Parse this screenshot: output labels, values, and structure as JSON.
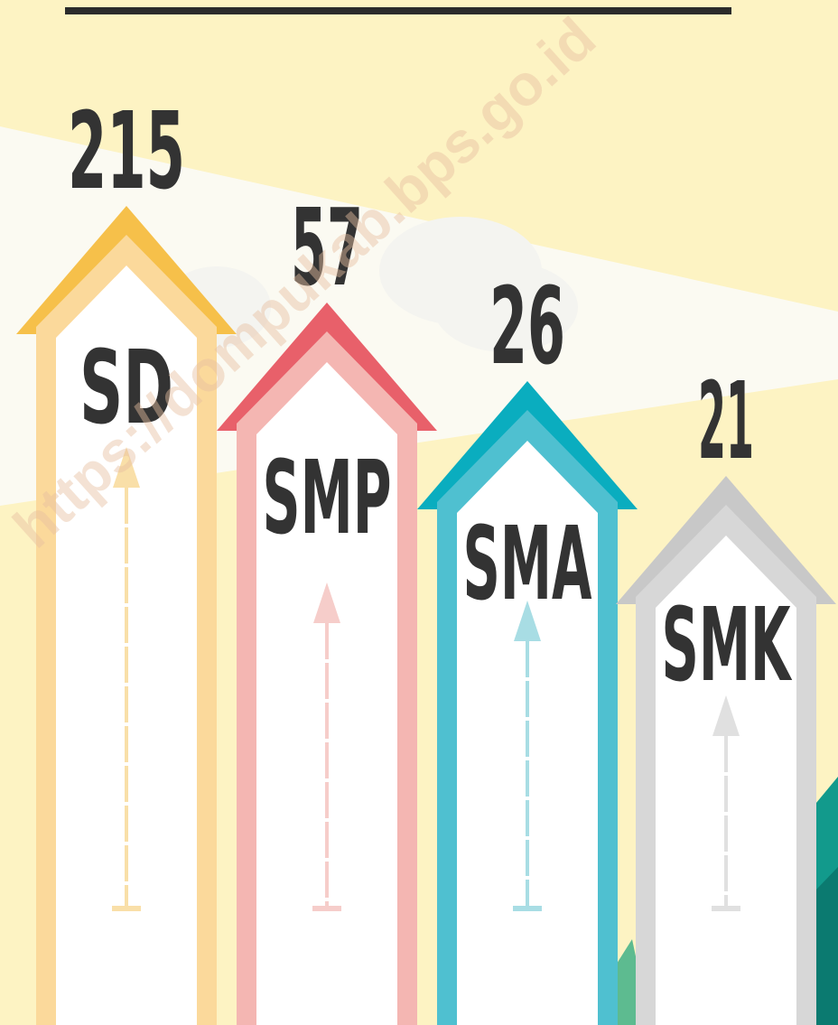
{
  "items": [
    {
      "label": "SD",
      "value": 215
    },
    {
      "label": "SMP",
      "value": 57
    },
    {
      "label": "SMA",
      "value": 26
    },
    {
      "label": "SMK",
      "value": 21
    }
  ],
  "watermark": "https://dompukab.bps.go.id"
}
